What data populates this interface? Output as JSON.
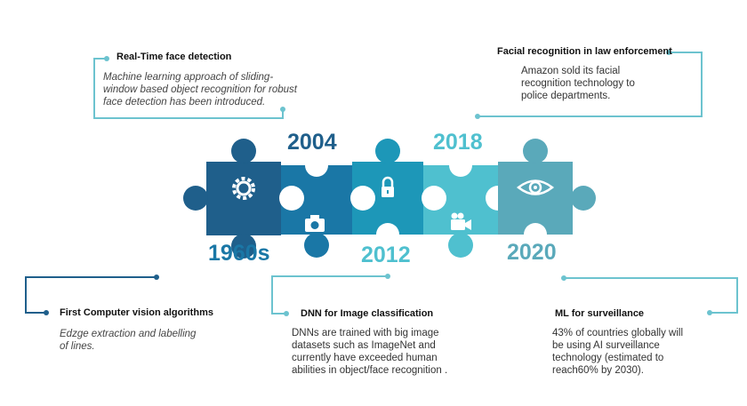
{
  "colors": {
    "piece_1960s": "#1f5f8b",
    "piece_2004": "#1a77a6",
    "piece_2012": "#1d97b8",
    "piece_2018": "#4fc0cf",
    "piece_2020": "#5aa9ba",
    "connector_dark": "#1f5f8b",
    "connector_light": "#6cc3cf"
  },
  "years": {
    "y1960s": "1960s",
    "y2004": "2004",
    "y2012": "2012",
    "y2018": "2018",
    "y2020": "2020"
  },
  "icons": [
    "gear-icon",
    "camera-icon",
    "lock-icon",
    "video-camera-icon",
    "eye-icon"
  ],
  "milestones": {
    "realtime": {
      "title": "Real-Time face detection",
      "line1": "Machine  learning approach of sliding-",
      "line2": "window based object  recognition for robust",
      "line3": "face detection has been introduced."
    },
    "law": {
      "title": "Facial recognition in law enforcement",
      "line1": "Amazon sold  its facial",
      "line2": "recognition technology to",
      "line3": "police departments."
    },
    "first_cv": {
      "title": "First Computer vision  algorithms",
      "line1": "Edzge extraction and labelling",
      "line2": "of lines."
    },
    "dnn": {
      "title": "DNN for Image classification",
      "line1": "DNNs are trained with big image",
      "line2": "datasets such as ImageNet and",
      "line3": "currently have exceeded human",
      "line4": "abilities in object/face recognition ."
    },
    "ml": {
      "title": "ML for surveillance",
      "line1": " 43% of countries globally will",
      "line2": "be using AI surveillance",
      "line3": "technology (estimated to",
      "line4": "reach60% by 2030)."
    }
  }
}
